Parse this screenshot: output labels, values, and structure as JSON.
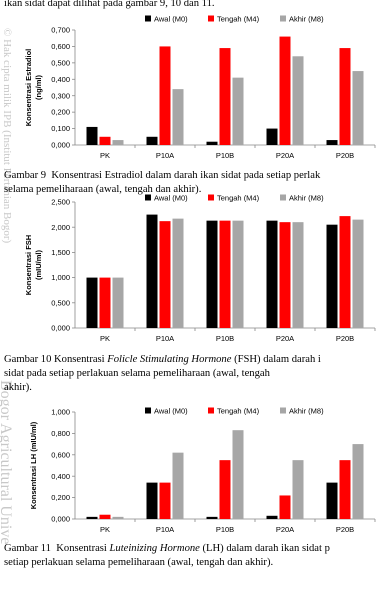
{
  "body_text": "ikan sidat dapat dilihat pada gambar 9, 10 dan 11.",
  "watermark": [
    "© Hak cipta milik IPB (Institut Pertanian Bogor)",
    "Bogor Agricultural Unive"
  ],
  "chart_data": [
    {
      "type": "bar",
      "ylabel": [
        "Konsentrasi Estradiol",
        "(ng/ml)"
      ],
      "categories": [
        "PK",
        "P10A",
        "P10B",
        "P20A",
        "P20B"
      ],
      "series": [
        {
          "name": "Awal (M0)",
          "color": "#000000",
          "values": [
            0.11,
            0.05,
            0.02,
            0.1,
            0.03
          ]
        },
        {
          "name": "Tengah (M4)",
          "color": "#ff0000",
          "values": [
            0.05,
            0.6,
            0.59,
            0.66,
            0.59
          ]
        },
        {
          "name": "Akhir (M8)",
          "color": "#a6a6a6",
          "values": [
            0.03,
            0.34,
            0.41,
            0.54,
            0.45
          ]
        }
      ],
      "ylim": [
        0,
        0.7
      ],
      "yticks": [
        {
          "value": 0,
          "label": "0,000"
        },
        {
          "value": 0.1,
          "label": "0,100"
        },
        {
          "value": 0.2,
          "label": "0,200"
        },
        {
          "value": 0.3,
          "label": "0,300"
        },
        {
          "value": 0.4,
          "label": "0,400"
        },
        {
          "value": 0.5,
          "label": "0,500"
        },
        {
          "value": 0.6,
          "label": "0,600"
        },
        {
          "value": 0.7,
          "label": "0,700"
        }
      ],
      "grid": false,
      "legend": "top",
      "caption": [
        [
          "Gambar 9  Konsentrasi Estradiol dalam darah ikan sidat pada setiap perlak"
        ],
        [
          "selama pemeliharaan (awal, tengah dan akhir)."
        ]
      ]
    },
    {
      "type": "bar",
      "ylabel": [
        "Konsentrasi FSH",
        "(mIU/ml)"
      ],
      "categories": [
        "PK",
        "P10A",
        "P10B",
        "P20A",
        "P20B"
      ],
      "series": [
        {
          "name": "Awal (M0)",
          "color": "#000000",
          "values": [
            1.0,
            2.25,
            2.13,
            2.13,
            2.05
          ]
        },
        {
          "name": "Tengah (M4)",
          "color": "#ff0000",
          "values": [
            1.0,
            2.12,
            2.13,
            2.1,
            2.22
          ]
        },
        {
          "name": "Akhir (M8)",
          "color": "#a6a6a6",
          "values": [
            1.0,
            2.17,
            2.13,
            2.1,
            2.15
          ]
        }
      ],
      "ylim": [
        0,
        2.5
      ],
      "yticks": [
        {
          "value": 0,
          "label": "0,000"
        },
        {
          "value": 0.5,
          "label": "0,500"
        },
        {
          "value": 1,
          "label": "1,000"
        },
        {
          "value": 1.5,
          "label": "1,500"
        },
        {
          "value": 2,
          "label": "2,000"
        },
        {
          "value": 2.5,
          "label": "2,500"
        }
      ],
      "grid": false,
      "legend": "top",
      "caption": [
        [
          "Gambar 10 Konsentrasi ",
          "Folicle Stimulating Hormone",
          " (FSH) dalam darah i"
        ],
        [
          "sidat pada setiap perlakuan selama pemeliharaan (awal, tengah"
        ],
        [
          "akhir)."
        ]
      ]
    },
    {
      "type": "bar",
      "ylabel": [
        "Konsentrasi LH (mIU/ml)"
      ],
      "categories": [
        "PK",
        "P10A",
        "P10B",
        "P20A",
        "P20B"
      ],
      "series": [
        {
          "name": "Awal (M0)",
          "color": "#000000",
          "values": [
            0.02,
            0.34,
            0.02,
            0.03,
            0.34
          ]
        },
        {
          "name": "Tengah (M4)",
          "color": "#ff0000",
          "values": [
            0.04,
            0.34,
            0.55,
            0.22,
            0.55
          ]
        },
        {
          "name": "Akhir (M8)",
          "color": "#a6a6a6",
          "values": [
            0.02,
            0.62,
            0.83,
            0.55,
            0.7
          ]
        }
      ],
      "ylim": [
        0,
        1
      ],
      "yticks": [
        {
          "value": 0,
          "label": "0,000"
        },
        {
          "value": 0.2,
          "label": "0,200"
        },
        {
          "value": 0.4,
          "label": "0,400"
        },
        {
          "value": 0.6,
          "label": "0,600"
        },
        {
          "value": 0.8,
          "label": "0,800"
        },
        {
          "value": 1,
          "label": "1,000"
        }
      ],
      "grid": false,
      "legend": "top",
      "caption": [
        [
          "Gambar 11  Konsentrasi ",
          "Luteinizing Hormone",
          " (LH) dalam darah ikan sidat p"
        ],
        [
          "setiap perlakuan selama pemeliharaan (awal, tengah dan akhir)."
        ]
      ]
    }
  ]
}
